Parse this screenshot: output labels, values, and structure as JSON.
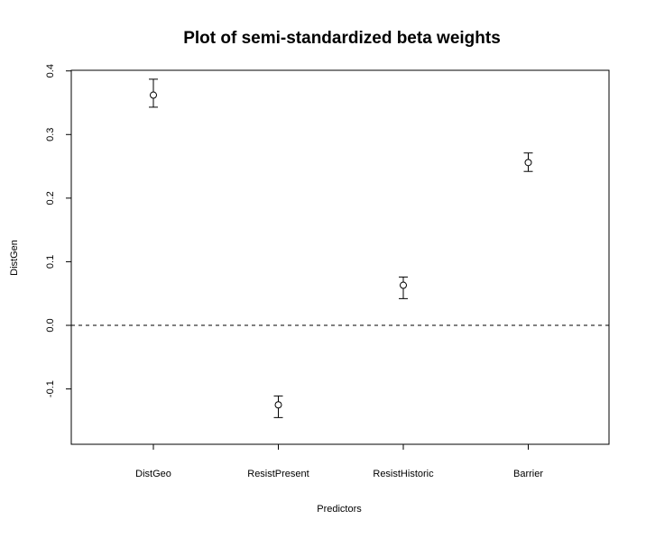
{
  "chart_data": {
    "type": "scatter",
    "title": "Plot of semi-standardized beta weights",
    "xlabel": "Predictors",
    "ylabel": "DistGen",
    "categories": [
      "DistGeo",
      "ResistPresent",
      "ResistHistoric",
      "Barrier"
    ],
    "points": [
      {
        "category": "DistGeo",
        "value": 0.362,
        "lower": 0.343,
        "upper": 0.387
      },
      {
        "category": "ResistPresent",
        "value": -0.125,
        "lower": -0.145,
        "upper": -0.111
      },
      {
        "category": "ResistHistoric",
        "value": 0.063,
        "lower": 0.042,
        "upper": 0.076
      },
      {
        "category": "Barrier",
        "value": 0.256,
        "lower": 0.242,
        "upper": 0.271
      }
    ],
    "y_ticks": [
      "-0.1",
      "0.0",
      "0.1",
      "0.2",
      "0.3",
      "0.4"
    ],
    "y_tick_values": [
      -0.1,
      0.0,
      0.1,
      0.2,
      0.3,
      0.4
    ],
    "ylim": [
      -0.187,
      0.401
    ],
    "reference_line": {
      "y": 0.0,
      "style": "dashed"
    },
    "grid": false,
    "marker": "open-circle",
    "error_bars": true
  }
}
